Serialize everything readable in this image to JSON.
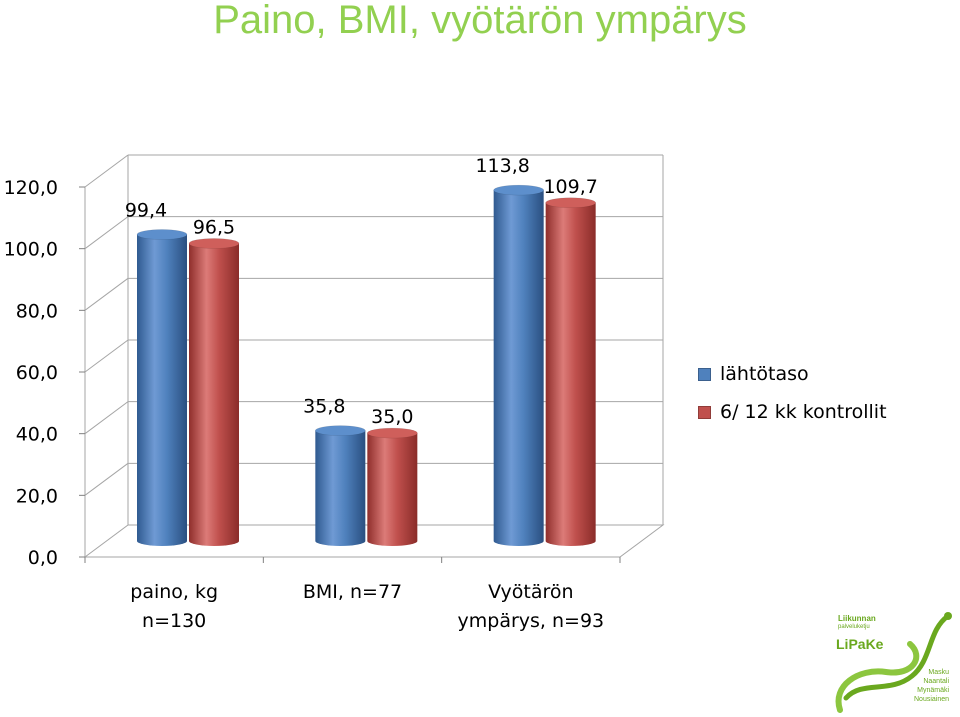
{
  "page": {
    "title": "Paino, BMI, vyötärön ympärys"
  },
  "chart_data": {
    "type": "bar",
    "title": "Paino, BMI, vyötärön ympärys",
    "categories": [
      [
        "paino, kg",
        "n=130"
      ],
      [
        "BMI, n=77"
      ],
      [
        "Vyötärön",
        "ympärys, n=93"
      ]
    ],
    "series": [
      {
        "name": "lähtötaso",
        "values": [
          99.4,
          35.8,
          113.8
        ],
        "labels": [
          "99,4",
          "35,8",
          "113,8"
        ],
        "color": "#4f81bd"
      },
      {
        "name": "6/ 12 kk kontrollit",
        "values": [
          96.5,
          35.0,
          109.7
        ],
        "labels": [
          "96,5",
          "35,0",
          "109,7"
        ],
        "color": "#c0504d"
      }
    ],
    "ylim": [
      0,
      120
    ],
    "y_ticks": [
      "0,0",
      "20,0",
      "40,0",
      "60,0",
      "80,0",
      "100,0",
      "120,0"
    ],
    "grid": true,
    "legend": "right",
    "style": "3d-cylinder"
  },
  "logo": {
    "top_line1": "Liikunnan",
    "top_line2": "palveluketju",
    "brand": "LiPaKe",
    "places": [
      "Masku",
      "Naantali",
      "Mynämäki",
      "Nousiainen"
    ],
    "color": "#6aa81e"
  }
}
